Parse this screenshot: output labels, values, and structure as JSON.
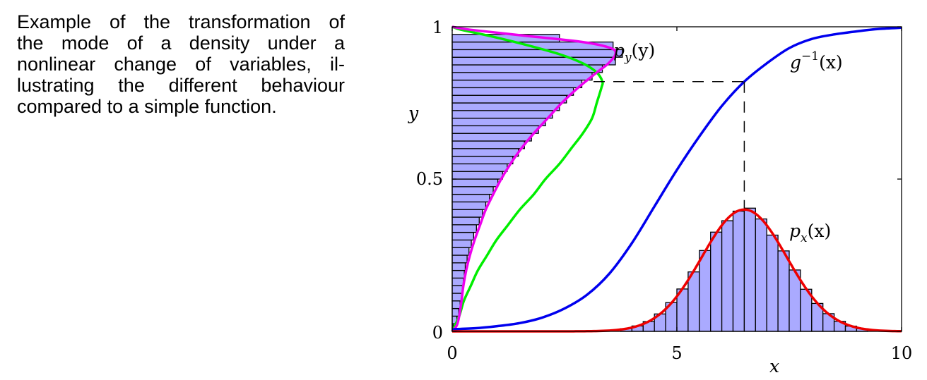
{
  "caption": {
    "lines": [
      "Example of the transformation of",
      "the mode of a density under a",
      "nonlinear change of variables, il-",
      "lustrating the different behaviour",
      "compared to a simple function."
    ]
  },
  "chart_data": {
    "type": "line",
    "xlabel": "x",
    "ylabel": "y",
    "xlim": [
      0,
      10
    ],
    "ylim": [
      0,
      1
    ],
    "x_ticks": [
      "0",
      "5",
      "10"
    ],
    "y_ticks": [
      "0",
      "0.5",
      "1"
    ],
    "grid": false,
    "series": [
      {
        "name": "g^{-1}(x)",
        "color": "#0000ee",
        "x": [
          0,
          0.5,
          1,
          1.5,
          2,
          2.5,
          3,
          3.5,
          4,
          4.5,
          5,
          5.5,
          6,
          6.5,
          7,
          7.5,
          8,
          8.5,
          9,
          9.5,
          10
        ],
        "y": [
          0.007,
          0.01,
          0.017,
          0.027,
          0.045,
          0.075,
          0.12,
          0.19,
          0.29,
          0.41,
          0.53,
          0.64,
          0.74,
          0.82,
          0.88,
          0.93,
          0.96,
          0.975,
          0.985,
          0.993,
          0.997
        ]
      },
      {
        "name": "p_x(x)",
        "color": "#ee0000",
        "mean": 6.5,
        "std": 0.95,
        "peak": 0.4
      },
      {
        "name": "p_y(y)",
        "color": "#ee00ee",
        "y": [
          0.0,
          0.02,
          0.05,
          0.1,
          0.15,
          0.2,
          0.25,
          0.3,
          0.35,
          0.4,
          0.45,
          0.5,
          0.55,
          0.6,
          0.65,
          0.7,
          0.75,
          0.8,
          0.85,
          0.88,
          0.91,
          0.93,
          0.95,
          0.97,
          0.99,
          1.0
        ],
        "density": [
          0.0,
          0.1,
          0.15,
          0.2,
          0.24,
          0.3,
          0.38,
          0.48,
          0.6,
          0.72,
          0.88,
          1.05,
          1.25,
          1.48,
          1.75,
          2.05,
          2.35,
          2.7,
          3.1,
          3.35,
          3.5,
          3.4,
          2.8,
          1.6,
          0.4,
          0.0
        ]
      },
      {
        "color": "#00ee00",
        "y": [
          0.0,
          0.05,
          0.1,
          0.15,
          0.2,
          0.25,
          0.3,
          0.35,
          0.4,
          0.45,
          0.5,
          0.55,
          0.6,
          0.65,
          0.7,
          0.75,
          0.8,
          0.82,
          0.85,
          0.88,
          0.91,
          0.94,
          0.97,
          0.99,
          1.0
        ],
        "density": [
          0.0,
          0.15,
          0.25,
          0.4,
          0.55,
          0.75,
          0.95,
          1.2,
          1.45,
          1.75,
          2.0,
          2.3,
          2.55,
          2.8,
          3.0,
          3.1,
          3.2,
          3.22,
          3.1,
          2.8,
          2.3,
          1.6,
          0.8,
          0.2,
          0.0
        ]
      }
    ],
    "histogram_x": {
      "color": "#aaaaff",
      "bin_width": 0.25,
      "x_start": 3.75,
      "x_end": 9.25,
      "follows": "p_x(x)"
    },
    "histogram_y": {
      "color": "#aaaaff",
      "y_edges": [
        0.0,
        0.025,
        0.05,
        0.075,
        0.1,
        0.125,
        0.15,
        0.175,
        0.2,
        0.225,
        0.25,
        0.275,
        0.3,
        0.325,
        0.35,
        0.375,
        0.4,
        0.425,
        0.45,
        0.475,
        0.5,
        0.525,
        0.55,
        0.575,
        0.6,
        0.625,
        0.65,
        0.675,
        0.7,
        0.725,
        0.75,
        0.775,
        0.8,
        0.825,
        0.85,
        0.875,
        0.9,
        0.925,
        0.95,
        0.975,
        1.0
      ],
      "density": [
        0.02,
        0.1,
        0.14,
        0.17,
        0.2,
        0.22,
        0.24,
        0.26,
        0.28,
        0.32,
        0.36,
        0.41,
        0.46,
        0.52,
        0.58,
        0.65,
        0.72,
        0.8,
        0.88,
        0.98,
        1.08,
        1.18,
        1.3,
        1.42,
        1.55,
        1.7,
        1.85,
        2.0,
        2.15,
        2.3,
        2.45,
        2.6,
        2.78,
        3.0,
        3.22,
        3.5,
        3.65,
        3.45,
        2.3,
        0.0
      ]
    },
    "annotations": [
      {
        "text": "p_y(y)",
        "label_main": "p",
        "label_sub": "y",
        "label_arg": "(y)"
      },
      {
        "text": "g^{-1}(x)",
        "label_main": "g",
        "label_sup": "−1",
        "label_arg": "(x)"
      },
      {
        "text": "p_x(x)",
        "label_main": "p",
        "label_sub": "x",
        "label_arg": "(x)"
      }
    ],
    "dashed_guide": {
      "x": 6.5,
      "y": 0.82
    }
  },
  "colors": {
    "g_inv": "#0000ee",
    "p_x": "#ee0000",
    "p_y": "#ee00ee",
    "naive": "#00ee00",
    "hist_fill": "#aaaaff",
    "axis": "#000000"
  }
}
